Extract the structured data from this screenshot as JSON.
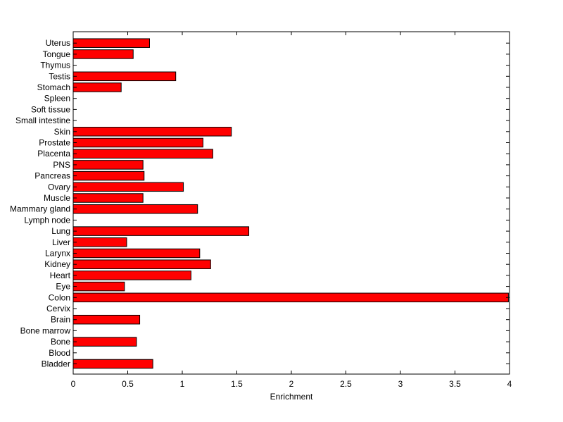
{
  "chart_data": {
    "type": "bar",
    "orientation": "horizontal",
    "title": "",
    "xlabel": "Enrichment",
    "ylabel": "",
    "xlim": [
      0,
      4
    ],
    "xticks": [
      0,
      0.5,
      1,
      1.5,
      2,
      2.5,
      3,
      3.5,
      4
    ],
    "xtick_labels": [
      "0",
      "0.5",
      "1",
      "1.5",
      "2",
      "2.5",
      "3",
      "3.5",
      "4"
    ],
    "grid": false,
    "legend": "none",
    "bar_color": "#ff0000",
    "bar_edge_color": "#000000",
    "categories": [
      "Bladder",
      "Blood",
      "Bone",
      "Bone marrow",
      "Brain",
      "Cervix",
      "Colon",
      "Eye",
      "Heart",
      "Kidney",
      "Larynx",
      "Liver",
      "Lung",
      "Lymph node",
      "Mammary gland",
      "Muscle",
      "Ovary",
      "Pancreas",
      "PNS",
      "Placenta",
      "Prostate",
      "Skin",
      "Small intestine",
      "Soft tissue",
      "Spleen",
      "Stomach",
      "Testis",
      "Thymus",
      "Tongue",
      "Uterus"
    ],
    "values": [
      0.73,
      0,
      0.58,
      0,
      0.61,
      0,
      3.99,
      0.47,
      1.08,
      1.26,
      1.16,
      0.49,
      1.61,
      0,
      1.14,
      0.64,
      1.01,
      0.65,
      0.64,
      1.28,
      1.19,
      1.45,
      0,
      0,
      0,
      0.44,
      0.94,
      0,
      0.55,
      0.7
    ]
  }
}
